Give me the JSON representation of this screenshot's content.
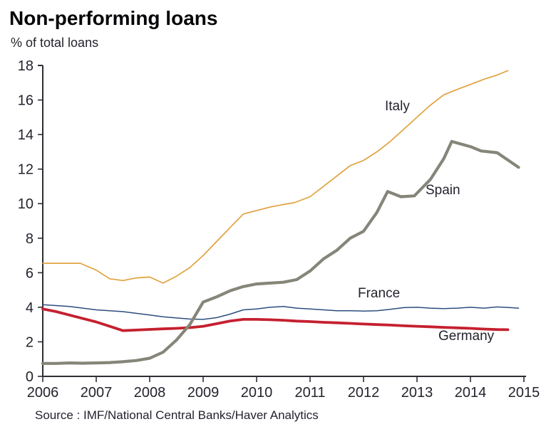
{
  "header": {
    "title": "Non-performing loans",
    "subtitle": "% of total loans"
  },
  "footer": {
    "source": "Source : IMF/National Central Banks/Haver Analytics"
  },
  "colors": {
    "italy": "#E1A23E",
    "spain": "#868579",
    "france": "#2C4E7E",
    "germany": "#C5202F",
    "axis": "#2D2D33",
    "text": "#23232E"
  },
  "chart_data": {
    "type": "line",
    "title": "Non-performing loans",
    "subtitle": "% of total loans",
    "xlabel": "",
    "ylabel": "% of total loans",
    "xlim": [
      2006,
      2015
    ],
    "ylim": [
      0,
      18
    ],
    "x_ticks": [
      2006,
      2007,
      2008,
      2009,
      2010,
      2011,
      2012,
      2013,
      2014,
      2015
    ],
    "y_ticks": [
      0,
      2,
      4,
      6,
      8,
      10,
      12,
      14,
      16,
      18
    ],
    "grid": false,
    "legend_position": "inline-labels",
    "source": "Source : IMF/National Central Banks/Haver Analytics",
    "series": [
      {
        "name": "Italy",
        "color": "#E1A23E",
        "width": 1.7,
        "points": [
          [
            2006,
            6.55
          ],
          [
            2006.25,
            6.55
          ],
          [
            2006.5,
            6.55
          ],
          [
            2006.7,
            6.55
          ],
          [
            2007,
            6.15
          ],
          [
            2007.25,
            5.65
          ],
          [
            2007.5,
            5.55
          ],
          [
            2007.75,
            5.7
          ],
          [
            2008,
            5.75
          ],
          [
            2008.25,
            5.4
          ],
          [
            2008.5,
            5.8
          ],
          [
            2008.75,
            6.3
          ],
          [
            2009,
            7.0
          ],
          [
            2009.25,
            7.8
          ],
          [
            2009.5,
            8.6
          ],
          [
            2009.75,
            9.4
          ],
          [
            2010,
            9.6
          ],
          [
            2010.25,
            9.8
          ],
          [
            2010.5,
            9.95
          ],
          [
            2010.7,
            10.05
          ],
          [
            2011,
            10.4
          ],
          [
            2011.25,
            11.0
          ],
          [
            2011.5,
            11.6
          ],
          [
            2011.75,
            12.2
          ],
          [
            2012,
            12.5
          ],
          [
            2012.25,
            13.0
          ],
          [
            2012.5,
            13.6
          ],
          [
            2012.75,
            14.3
          ],
          [
            2013,
            15.0
          ],
          [
            2013.25,
            15.7
          ],
          [
            2013.5,
            16.3
          ],
          [
            2013.7,
            16.55
          ],
          [
            2014,
            16.9
          ],
          [
            2014.25,
            17.2
          ],
          [
            2014.5,
            17.45
          ],
          [
            2014.7,
            17.7
          ]
        ]
      },
      {
        "name": "France",
        "color": "#2C4E7E",
        "width": 1.5,
        "points": [
          [
            2006,
            4.15
          ],
          [
            2006.25,
            4.1
          ],
          [
            2006.5,
            4.05
          ],
          [
            2006.75,
            3.95
          ],
          [
            2007,
            3.85
          ],
          [
            2007.25,
            3.8
          ],
          [
            2007.5,
            3.75
          ],
          [
            2007.75,
            3.65
          ],
          [
            2008,
            3.55
          ],
          [
            2008.25,
            3.45
          ],
          [
            2008.5,
            3.38
          ],
          [
            2008.75,
            3.32
          ],
          [
            2009,
            3.3
          ],
          [
            2009.25,
            3.4
          ],
          [
            2009.5,
            3.6
          ],
          [
            2009.75,
            3.85
          ],
          [
            2010,
            3.9
          ],
          [
            2010.25,
            4.0
          ],
          [
            2010.5,
            4.05
          ],
          [
            2010.75,
            3.95
          ],
          [
            2011,
            3.9
          ],
          [
            2011.25,
            3.85
          ],
          [
            2011.5,
            3.8
          ],
          [
            2011.75,
            3.8
          ],
          [
            2012,
            3.78
          ],
          [
            2012.25,
            3.8
          ],
          [
            2012.5,
            3.88
          ],
          [
            2012.75,
            3.98
          ],
          [
            2013,
            4.0
          ],
          [
            2013.25,
            3.95
          ],
          [
            2013.5,
            3.92
          ],
          [
            2013.75,
            3.95
          ],
          [
            2014,
            4.0
          ],
          [
            2014.25,
            3.95
          ],
          [
            2014.5,
            4.02
          ],
          [
            2014.75,
            3.98
          ],
          [
            2014.9,
            3.95
          ]
        ]
      },
      {
        "name": "Germany",
        "color": "#C5202F",
        "width": 3.8,
        "points": [
          [
            2006,
            3.9
          ],
          [
            2006.25,
            3.75
          ],
          [
            2006.5,
            3.55
          ],
          [
            2006.75,
            3.35
          ],
          [
            2007,
            3.15
          ],
          [
            2007.25,
            2.9
          ],
          [
            2007.5,
            2.65
          ],
          [
            2007.75,
            2.68
          ],
          [
            2008,
            2.72
          ],
          [
            2008.25,
            2.75
          ],
          [
            2008.5,
            2.78
          ],
          [
            2008.75,
            2.82
          ],
          [
            2009,
            2.9
          ],
          [
            2009.25,
            3.05
          ],
          [
            2009.5,
            3.2
          ],
          [
            2009.75,
            3.3
          ],
          [
            2010,
            3.3
          ],
          [
            2010.25,
            3.28
          ],
          [
            2010.5,
            3.25
          ],
          [
            2010.75,
            3.2
          ],
          [
            2011,
            3.17
          ],
          [
            2011.25,
            3.13
          ],
          [
            2011.5,
            3.1
          ],
          [
            2011.75,
            3.07
          ],
          [
            2012,
            3.03
          ],
          [
            2012.25,
            3.0
          ],
          [
            2012.5,
            2.97
          ],
          [
            2012.75,
            2.93
          ],
          [
            2013,
            2.9
          ],
          [
            2013.25,
            2.87
          ],
          [
            2013.5,
            2.84
          ],
          [
            2013.75,
            2.81
          ],
          [
            2014,
            2.78
          ],
          [
            2014.25,
            2.74
          ],
          [
            2014.5,
            2.71
          ],
          [
            2014.7,
            2.7
          ]
        ]
      },
      {
        "name": "Spain",
        "color": "#868579",
        "width": 4.2,
        "points": [
          [
            2006,
            0.75
          ],
          [
            2006.25,
            0.75
          ],
          [
            2006.5,
            0.78
          ],
          [
            2006.75,
            0.76
          ],
          [
            2007,
            0.78
          ],
          [
            2007.25,
            0.8
          ],
          [
            2007.5,
            0.85
          ],
          [
            2007.75,
            0.92
          ],
          [
            2008,
            1.05
          ],
          [
            2008.25,
            1.4
          ],
          [
            2008.5,
            2.1
          ],
          [
            2008.75,
            3.0
          ],
          [
            2009,
            4.3
          ],
          [
            2009.25,
            4.6
          ],
          [
            2009.5,
            4.95
          ],
          [
            2009.75,
            5.2
          ],
          [
            2010,
            5.35
          ],
          [
            2010.25,
            5.4
          ],
          [
            2010.5,
            5.45
          ],
          [
            2010.75,
            5.6
          ],
          [
            2011,
            6.1
          ],
          [
            2011.25,
            6.8
          ],
          [
            2011.5,
            7.3
          ],
          [
            2011.75,
            8.0
          ],
          [
            2012,
            8.4
          ],
          [
            2012.25,
            9.5
          ],
          [
            2012.45,
            10.7
          ],
          [
            2012.7,
            10.4
          ],
          [
            2012.95,
            10.45
          ],
          [
            2013.25,
            11.4
          ],
          [
            2013.5,
            12.6
          ],
          [
            2013.65,
            13.6
          ],
          [
            2014,
            13.3
          ],
          [
            2014.2,
            13.05
          ],
          [
            2014.5,
            12.95
          ],
          [
            2014.9,
            12.1
          ]
        ]
      }
    ],
    "labels": [
      {
        "text": "Italy"
      },
      {
        "text": "Spain"
      },
      {
        "text": "France"
      },
      {
        "text": "Germany"
      }
    ]
  }
}
